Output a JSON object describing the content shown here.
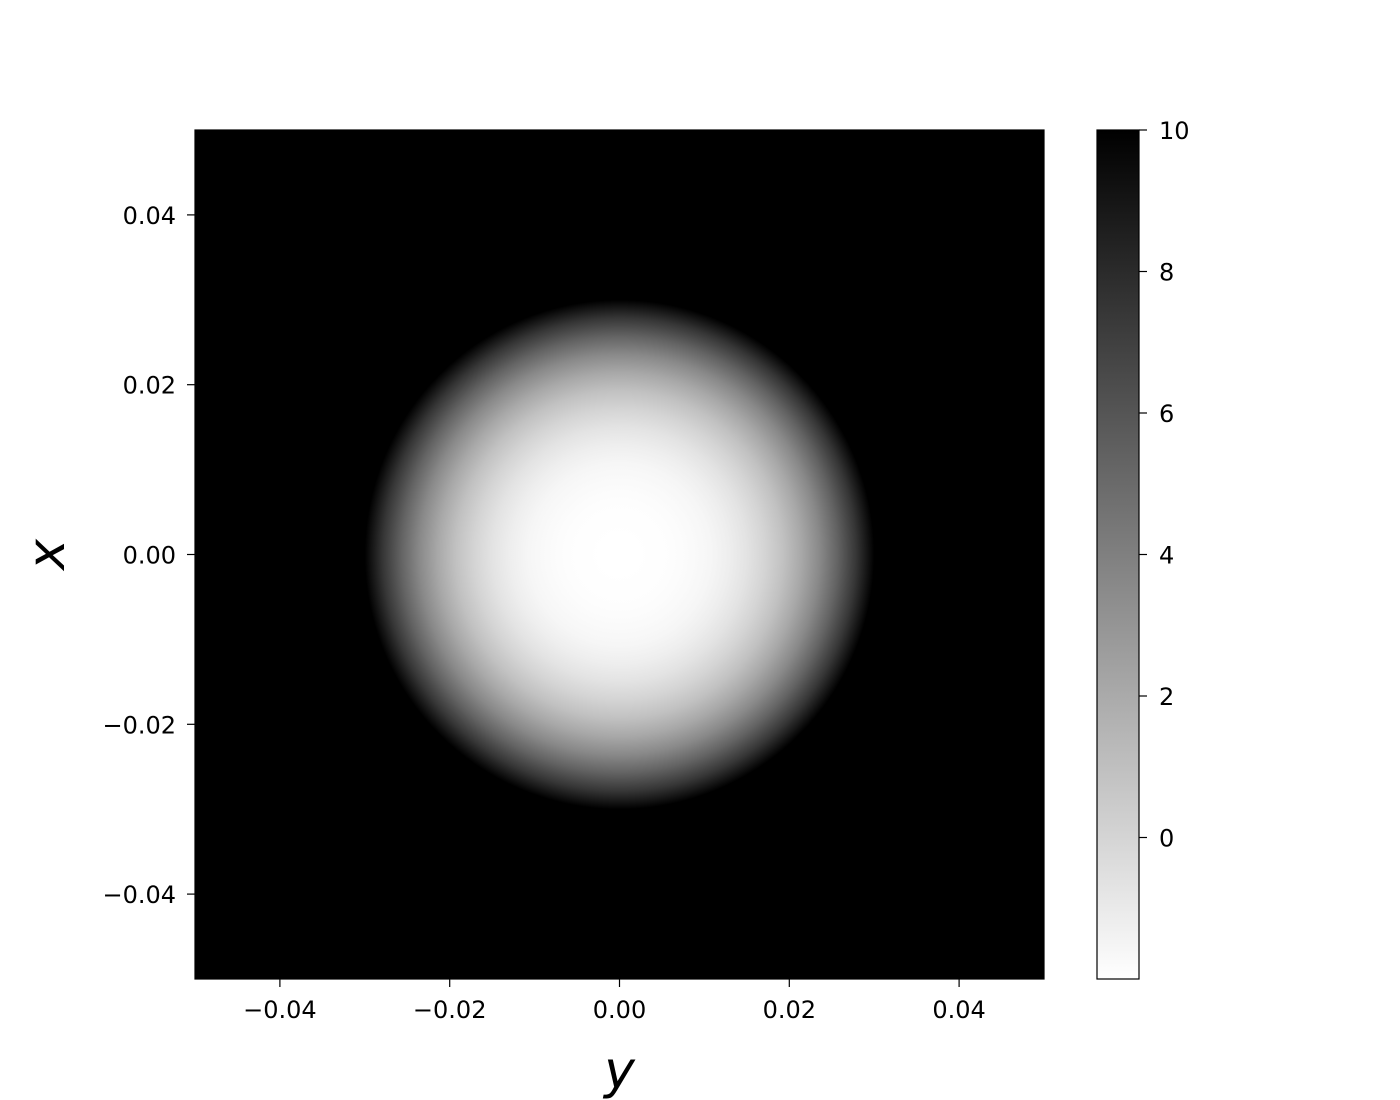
{
  "chart_data": {
    "type": "heatmap",
    "title": "",
    "xlabel": "y",
    "ylabel": "x",
    "xlim": [
      -0.05,
      0.05
    ],
    "ylim": [
      -0.05,
      0.05
    ],
    "xticks": [
      -0.04,
      -0.02,
      0.0,
      0.02,
      0.04
    ],
    "xtick_labels": [
      "−0.04",
      "−0.02",
      "0.00",
      "0.02",
      "0.04"
    ],
    "yticks": [
      0.04,
      0.02,
      0.0,
      -0.02,
      -0.04
    ],
    "ytick_labels": [
      "0.04",
      "0.02",
      "0.00",
      "−0.02",
      "−0.04"
    ],
    "colormap": "gray_r",
    "colormap_low_color": "#ffffff",
    "colormap_high_color": "#000000",
    "background_color": "#000000",
    "field": {
      "shape": "radial disk",
      "center": [
        0.0,
        0.0
      ],
      "radius": 0.03,
      "center_value": -2.0,
      "outside_value": 10.0
    },
    "colorbar": {
      "range": [
        -2.0,
        10.0
      ],
      "ticks": [
        10,
        8,
        6,
        4,
        2,
        0
      ],
      "tick_labels": [
        "10",
        "8",
        "6",
        "4",
        "2",
        "0"
      ]
    },
    "grid": false,
    "legend": "none"
  }
}
